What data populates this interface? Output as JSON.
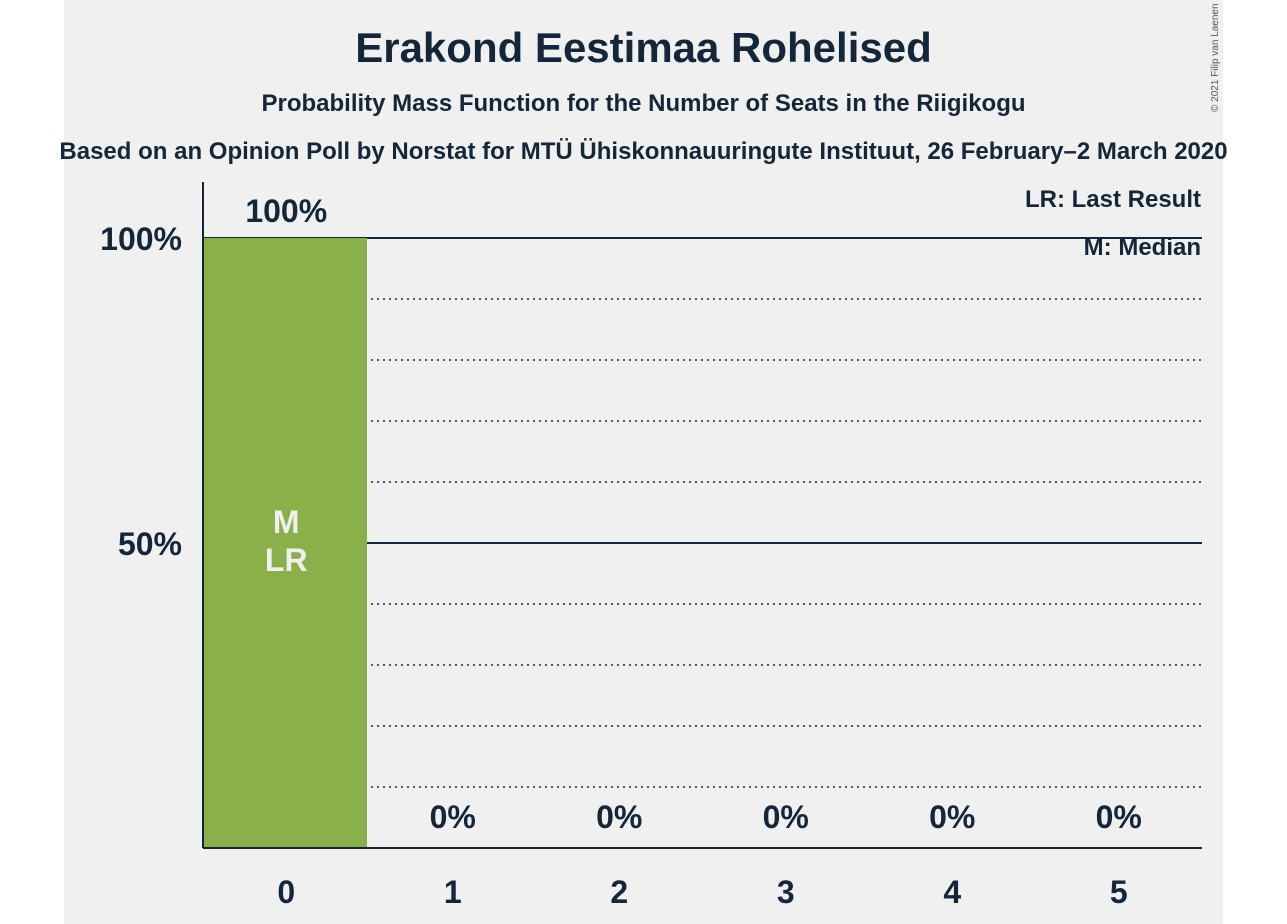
{
  "header": {
    "title": "Erakond Eestimaa Rohelised",
    "subtitle": "Probability Mass Function for the Number of Seats in the Riigikogu",
    "source": "Based on an Opinion Poll by Norstat for MTÜ Ühiskonnauuringute Instituut, 26 February–2 March 2020",
    "copyright": "© 2021 Filip van Laenen"
  },
  "legend": {
    "last_result": "LR: Last Result",
    "median": "M: Median"
  },
  "colors": {
    "bar": "#8ab04a",
    "text": "#13263a",
    "panel": "#f0f0f0"
  },
  "chart_data": {
    "type": "bar",
    "categories": [
      "0",
      "1",
      "2",
      "3",
      "4",
      "5"
    ],
    "values": [
      100,
      0,
      0,
      0,
      0,
      0
    ],
    "value_labels": [
      "100%",
      "0%",
      "0%",
      "0%",
      "0%",
      "0%"
    ],
    "bar_markers": [
      [
        "M",
        "LR"
      ],
      [],
      [],
      [],
      [],
      []
    ],
    "y_ticks": [
      {
        "value": 50,
        "label": "50%"
      },
      {
        "value": 100,
        "label": "100%"
      }
    ],
    "ylim": [
      0,
      100
    ],
    "grid": "solid at 50% and 100%, dotted every 10%",
    "legend_placement": "top-right"
  }
}
